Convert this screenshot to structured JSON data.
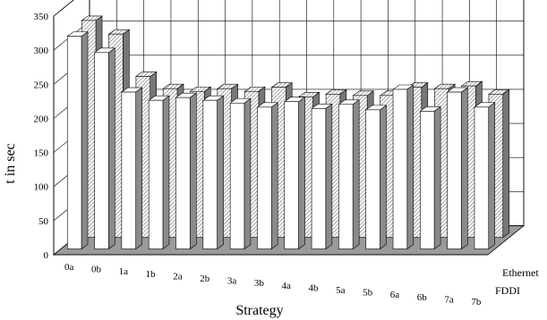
{
  "chart_data": {
    "type": "bar",
    "style": "3d-clustered-depth",
    "categories": [
      "0a",
      "0b",
      "1a",
      "1b",
      "2a",
      "2b",
      "3a",
      "3b",
      "4a",
      "4b",
      "5a",
      "5b",
      "6a",
      "6b",
      "7a",
      "7b"
    ],
    "series": [
      {
        "name": "FDDI",
        "values": [
          312,
          288,
          230,
          218,
          222,
          218,
          214,
          208,
          216,
          206,
          212,
          204,
          234,
          202,
          230,
          208
        ]
      },
      {
        "name": "Ethernet",
        "values": [
          318,
          298,
          236,
          218,
          214,
          218,
          214,
          220,
          206,
          210,
          208,
          208,
          220,
          218,
          222,
          210
        ]
      }
    ],
    "xlabel": "Strategy",
    "ylabel": "t in sec",
    "ylim": [
      0,
      350
    ],
    "yticks": [
      0,
      50,
      100,
      150,
      200,
      250,
      300,
      350
    ],
    "grid": true,
    "colors": {
      "fddi_front": "#ffffff",
      "fddi_side": "#8a8a8a",
      "fddi_top": "#ffffff",
      "ethernet_front": "#e8e8e8",
      "ethernet_side": "#777777",
      "ethernet_top": "#bfbfbf",
      "grid": "#000000",
      "wall": "#ffffff",
      "floor": "#9a9a9a"
    }
  }
}
